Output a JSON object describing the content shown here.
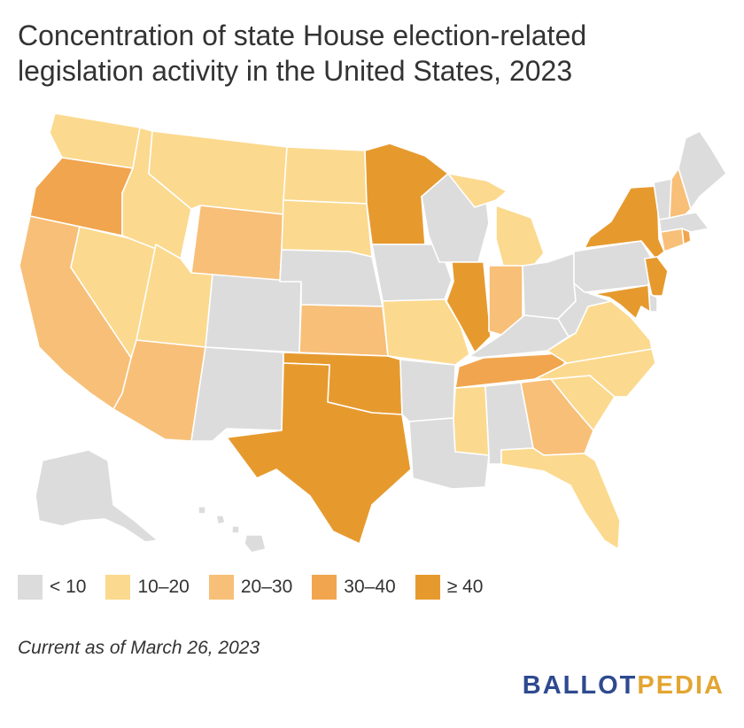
{
  "title": {
    "line1": "Concentration of state House election-related",
    "line2": "legislation activity in the United States, 2023"
  },
  "colors": {
    "lt10": "#dcdcdc",
    "10-20": "#fbd98e",
    "20-30": "#f8bf78",
    "30-40": "#f1a54e",
    "ge40": "#e69a2e"
  },
  "legend": [
    {
      "label": "< 10",
      "color": "#dcdcdc"
    },
    {
      "label": "10–20",
      "color": "#fbd98e"
    },
    {
      "label": "20–30",
      "color": "#f8bf78"
    },
    {
      "label": "30–40",
      "color": "#f1a54e"
    },
    {
      "label": "≥ 40",
      "color": "#e69a2e"
    }
  ],
  "map": {
    "type": "choropleth",
    "region": "United States",
    "states": [
      {
        "code": "WA",
        "category": "10-20"
      },
      {
        "code": "OR",
        "category": "30-40"
      },
      {
        "code": "CA",
        "category": "20-30"
      },
      {
        "code": "NV",
        "category": "10-20"
      },
      {
        "code": "ID",
        "category": "10-20"
      },
      {
        "code": "MT",
        "category": "10-20"
      },
      {
        "code": "WY",
        "category": "20-30"
      },
      {
        "code": "UT",
        "category": "10-20"
      },
      {
        "code": "AZ",
        "category": "20-30"
      },
      {
        "code": "CO",
        "category": "lt10"
      },
      {
        "code": "NM",
        "category": "lt10"
      },
      {
        "code": "ND",
        "category": "10-20"
      },
      {
        "code": "SD",
        "category": "10-20"
      },
      {
        "code": "NE",
        "category": "lt10"
      },
      {
        "code": "KS",
        "category": "20-30"
      },
      {
        "code": "OK",
        "category": "ge40"
      },
      {
        "code": "TX",
        "category": "ge40"
      },
      {
        "code": "MN",
        "category": "ge40"
      },
      {
        "code": "IA",
        "category": "lt10"
      },
      {
        "code": "MO",
        "category": "10-20"
      },
      {
        "code": "AR",
        "category": "lt10"
      },
      {
        "code": "LA",
        "category": "lt10"
      },
      {
        "code": "WI",
        "category": "lt10"
      },
      {
        "code": "IL",
        "category": "ge40"
      },
      {
        "code": "MI",
        "category": "10-20"
      },
      {
        "code": "IN",
        "category": "20-30"
      },
      {
        "code": "OH",
        "category": "lt10"
      },
      {
        "code": "KY",
        "category": "lt10"
      },
      {
        "code": "TN",
        "category": "30-40"
      },
      {
        "code": "MS",
        "category": "10-20"
      },
      {
        "code": "AL",
        "category": "lt10"
      },
      {
        "code": "GA",
        "category": "20-30"
      },
      {
        "code": "FL",
        "category": "10-20"
      },
      {
        "code": "SC",
        "category": "10-20"
      },
      {
        "code": "NC",
        "category": "10-20"
      },
      {
        "code": "VA",
        "category": "10-20"
      },
      {
        "code": "WV",
        "category": "lt10"
      },
      {
        "code": "PA",
        "category": "lt10"
      },
      {
        "code": "NY",
        "category": "ge40"
      },
      {
        "code": "NJ",
        "category": "ge40"
      },
      {
        "code": "DE",
        "category": "lt10"
      },
      {
        "code": "MD",
        "category": "ge40"
      },
      {
        "code": "CT",
        "category": "20-30"
      },
      {
        "code": "RI",
        "category": "30-40"
      },
      {
        "code": "MA",
        "category": "lt10"
      },
      {
        "code": "VT",
        "category": "lt10"
      },
      {
        "code": "NH",
        "category": "20-30"
      },
      {
        "code": "ME",
        "category": "lt10"
      },
      {
        "code": "AK",
        "category": "lt10"
      },
      {
        "code": "HI",
        "category": "lt10"
      }
    ]
  },
  "footnote": "Current as of March 26, 2023",
  "brand": {
    "part1": "BALLOT",
    "part2": "PEDIA"
  }
}
